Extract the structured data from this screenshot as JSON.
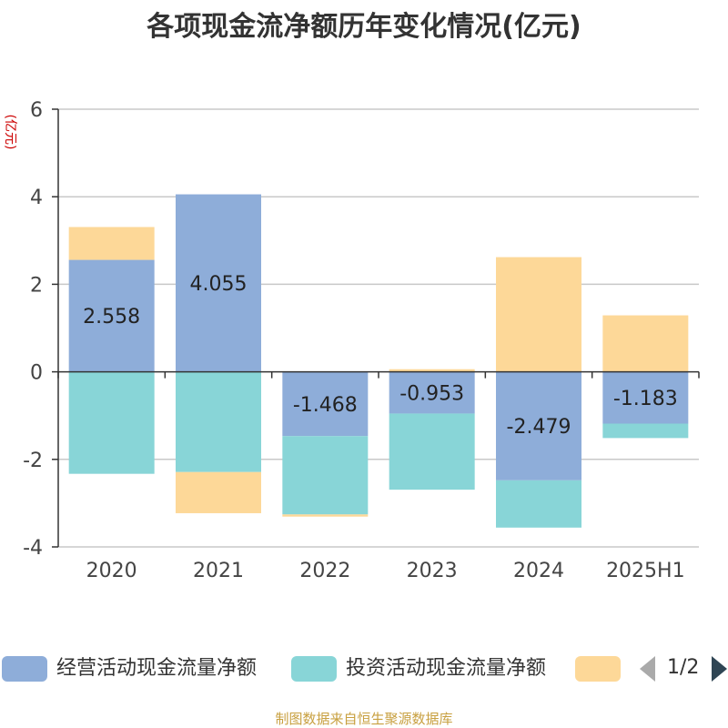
{
  "chart_data": {
    "type": "bar",
    "stacked": true,
    "title": "各项现金流净额历年变化情况(亿元)",
    "ylabel": "(亿元)",
    "categories": [
      "2020",
      "2021",
      "2022",
      "2023",
      "2024",
      "2025H1"
    ],
    "ylim": [
      -4,
      6
    ],
    "yticks": [
      6,
      4,
      2,
      0,
      -2,
      -4
    ],
    "grid": true,
    "series": [
      {
        "name": "经营活动现金流量净额",
        "color": "#8eadd9",
        "values": [
          2.558,
          4.055,
          -1.468,
          -0.953,
          -2.479,
          -1.183
        ],
        "labels": [
          "2.558",
          "4.055",
          "-1.468",
          "-0.953",
          "-2.479",
          "-1.183"
        ]
      },
      {
        "name": "投资活动现金流量净额",
        "color": "#88d5d7",
        "values": [
          -2.33,
          -2.29,
          -1.79,
          -1.74,
          -1.08,
          -0.33
        ]
      },
      {
        "name": "",
        "color": "#fdd898",
        "values": [
          0.75,
          -0.94,
          -0.05,
          0.06,
          2.62,
          1.29
        ]
      }
    ],
    "legend": {
      "position": "bottom",
      "page": "1/2"
    }
  },
  "source": "制图数据来自恒生聚源数据库"
}
